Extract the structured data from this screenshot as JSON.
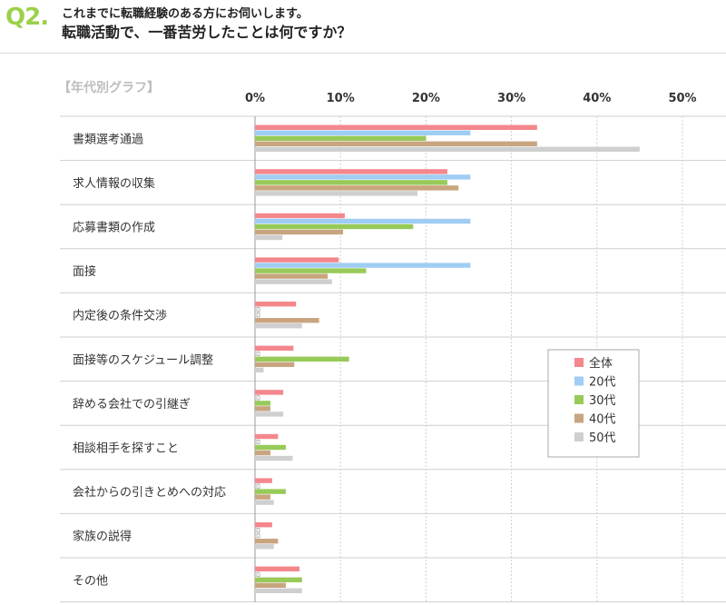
{
  "question": {
    "label": "Q2.",
    "line1": "これまでに転職経験のある方にお伺いします。",
    "line2": "転職活動で、一番苦労したことは何ですか？"
  },
  "chart_data": {
    "type": "bar",
    "orientation": "horizontal",
    "subtitle": "【年代別グラフ】",
    "categories": [
      "書類選考通過",
      "求人情報の収集",
      "応募書類の作成",
      "面接",
      "内定後の条件交渉",
      "面接等のスケジュール調整",
      "辞める会社での引継ぎ",
      "相談相手を探すこと",
      "会社からの引きとめへの対応",
      "家族の説得",
      "その他"
    ],
    "series": [
      {
        "name": "全体",
        "color": "#f4878c",
        "values": [
          33,
          22.5,
          10.5,
          9.8,
          4.8,
          4.5,
          3.3,
          2.7,
          2.0,
          2.0,
          5.2
        ]
      },
      {
        "name": "20代",
        "color": "#9fcdf3",
        "values": [
          25.2,
          25.2,
          25.2,
          25.2,
          0,
          0,
          0,
          0,
          0,
          0,
          0
        ]
      },
      {
        "name": "30代",
        "color": "#97ca58",
        "values": [
          20,
          22.5,
          18.5,
          13,
          0,
          11,
          1.8,
          3.6,
          3.6,
          0,
          5.5
        ]
      },
      {
        "name": "40代",
        "color": "#c9a57f",
        "values": [
          33,
          23.8,
          10.3,
          8.5,
          7.5,
          4.6,
          1.8,
          1.8,
          1.8,
          2.7,
          3.6
        ]
      },
      {
        "name": "50代",
        "color": "#cfcfcf",
        "values": [
          45,
          19,
          3.2,
          9,
          5.5,
          1.0,
          3.3,
          4.4,
          2.2,
          2.2,
          5.5
        ]
      }
    ],
    "xlim": [
      0,
      50
    ],
    "xticks": [
      "0%",
      "10%",
      "20%",
      "30%",
      "40%",
      "50%"
    ],
    "grid": true,
    "legend": "right"
  }
}
